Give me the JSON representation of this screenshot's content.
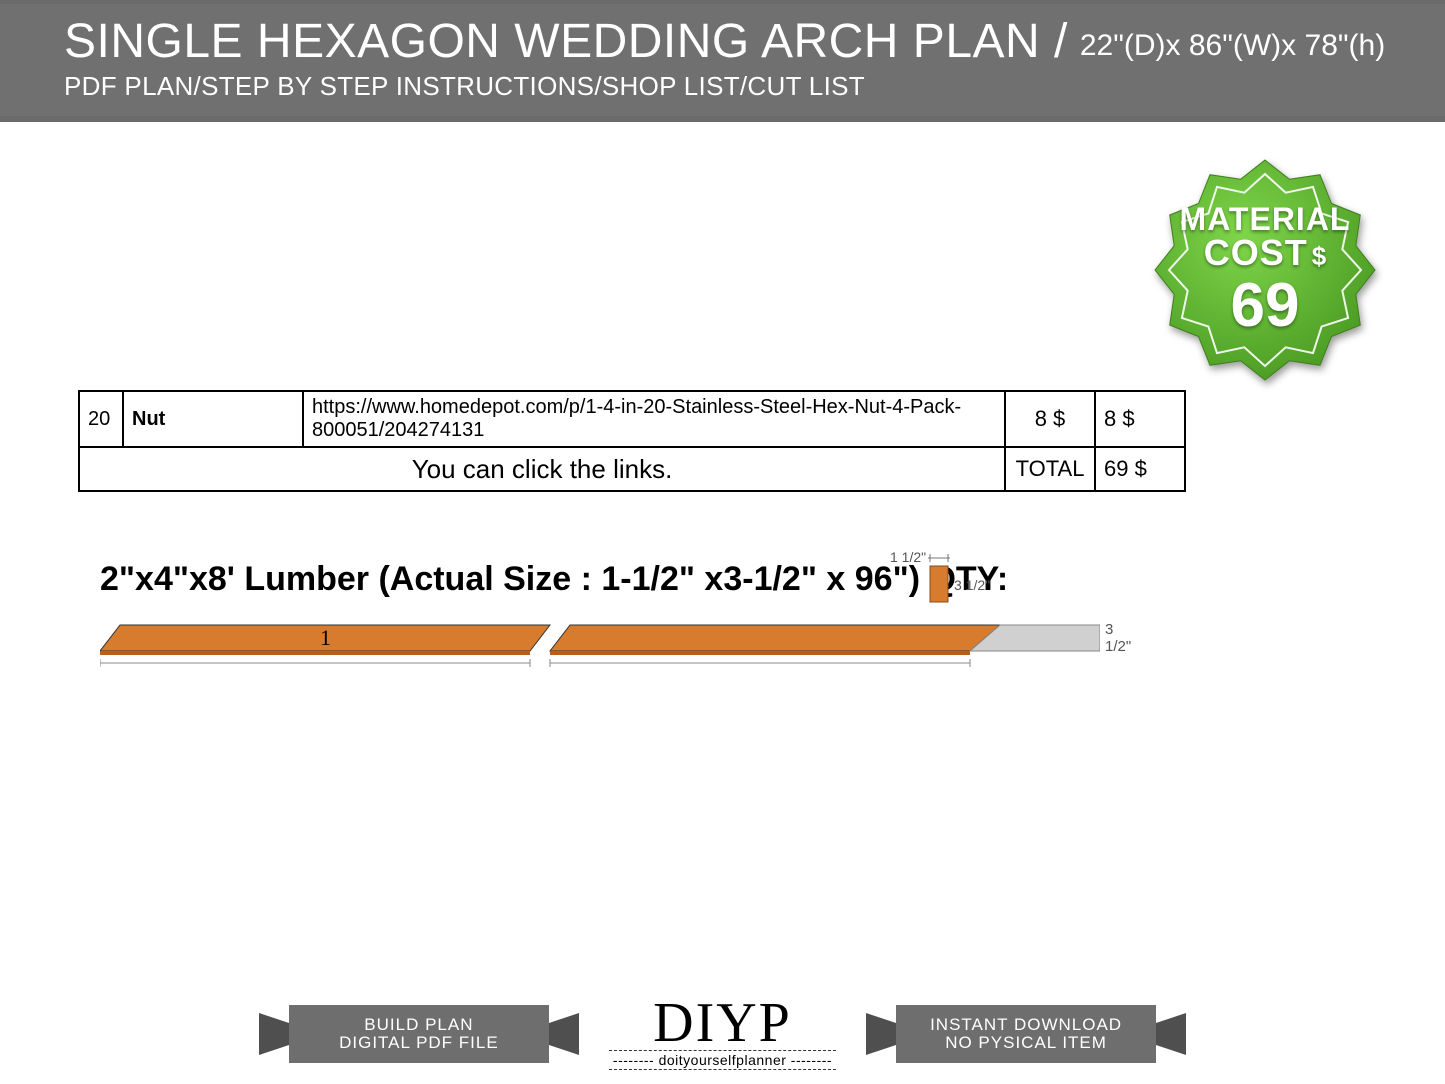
{
  "header": {
    "title": "SINGLE HEXAGON WEDDING ARCH PLAN /",
    "dimensions": "22\"(D)x 86\"(W)x 78\"(h)",
    "subtitle": "PDF PLAN/STEP BY STEP INSTRUCTIONS/SHOP LIST/CUT LIST",
    "bg_color": "#707070",
    "text_color": "#ffffff"
  },
  "badge": {
    "line1": "MATERIAL",
    "line2": "COST",
    "dollar": "$",
    "value": "69",
    "fill": "#5eb82e",
    "fill_dark": "#4a9a22",
    "inner_stroke": "#ffffff"
  },
  "table": {
    "rows": [
      {
        "qty": "20",
        "name": "Nut",
        "link": "https://www.homedepot.com/p/1-4-in-20-Stainless-Steel-Hex-Nut-4-Pack-800051/204274131",
        "price1": "8 $",
        "price2": "8 $"
      }
    ],
    "total_row": {
      "msg": "You can click the links.",
      "label": "TOTAL",
      "value": "69 $"
    }
  },
  "lumber": {
    "title": "2\"x4\"x8' Lumber (Actual Size : 1-1/2\" x3-1/2\" x 96\") QTY:",
    "cross_section": {
      "w_label": "1 1/2\"",
      "h_label": "3 1/2\"",
      "fill": "#d77c2e"
    },
    "board": {
      "fill": "#d77c2e",
      "fill_light": "#e08d44",
      "waste_fill": "#d0d0d0",
      "stroke": "#333333",
      "piece_label": "1",
      "right_dim": "3 1/2\""
    }
  },
  "footer": {
    "ribbon_fill": "#6e6e6e",
    "ribbon_dark": "#4f4f4f",
    "left": {
      "line1": "BUILD PLAN",
      "line2": "DIGITAL PDF FILE"
    },
    "logo": {
      "main": "DIYP",
      "sub": "-------- doityourselfplanner --------"
    },
    "right": {
      "line1": "INSTANT DOWNLOAD",
      "line2": "NO PYSICAL ITEM"
    }
  }
}
